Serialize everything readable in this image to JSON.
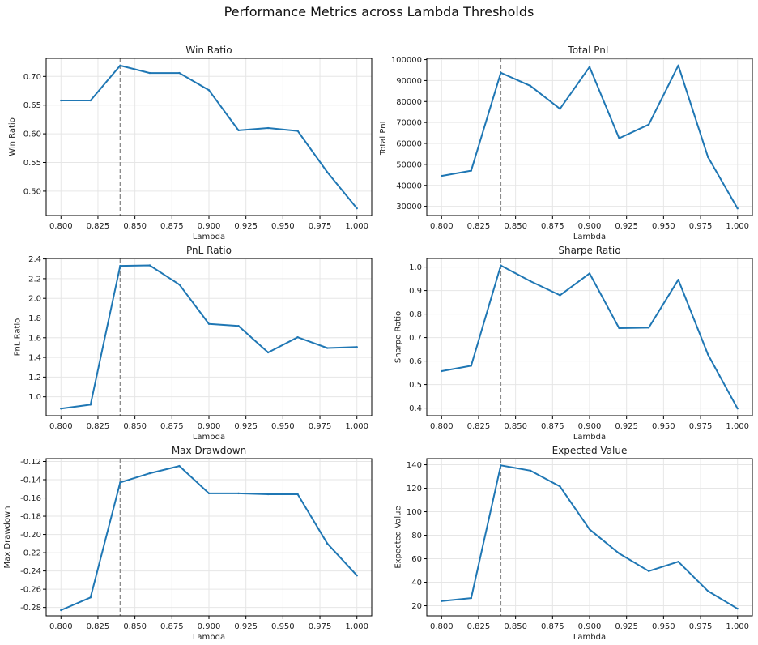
{
  "figure": {
    "title": "Performance Metrics across Lambda Thresholds"
  },
  "chart_data": [
    {
      "type": "line",
      "title": "Win Ratio",
      "xlabel": "Lambda",
      "ylabel": "Win Ratio",
      "x": [
        0.8,
        0.82,
        0.84,
        0.86,
        0.88,
        0.9,
        0.92,
        0.94,
        0.96,
        0.98,
        1.0
      ],
      "series": [
        {
          "values": [
            0.658,
            0.658,
            0.719,
            0.706,
            0.706,
            0.676,
            0.606,
            0.61,
            0.605,
            0.533,
            0.47
          ]
        }
      ],
      "xlim": [
        0.79,
        1.01
      ],
      "ylim": [
        0.4575,
        0.7315
      ],
      "xticks": [
        "0.800",
        "0.825",
        "0.850",
        "0.875",
        "0.900",
        "0.925",
        "0.950",
        "0.975",
        "1.000"
      ],
      "yticks": [
        "0.50",
        "0.55",
        "0.60",
        "0.65",
        "0.70"
      ],
      "vline": 0.84,
      "grid": true,
      "color": "#1f77b4"
    },
    {
      "type": "line",
      "title": "Total PnL",
      "xlabel": "Lambda",
      "ylabel": "Total PnL",
      "x": [
        0.8,
        0.82,
        0.84,
        0.86,
        0.88,
        0.9,
        0.92,
        0.94,
        0.96,
        0.98,
        1.0
      ],
      "series": [
        {
          "values": [
            44500,
            47000,
            93700,
            87500,
            76500,
            96500,
            62500,
            69000,
            97200,
            53500,
            29000
          ]
        }
      ],
      "xlim": [
        0.79,
        1.01
      ],
      "ylim": [
        25600,
        100600
      ],
      "xticks": [
        "0.800",
        "0.825",
        "0.850",
        "0.875",
        "0.900",
        "0.925",
        "0.950",
        "0.975",
        "1.000"
      ],
      "yticks": [
        "30000",
        "40000",
        "50000",
        "60000",
        "70000",
        "80000",
        "90000",
        "100000"
      ],
      "vline": 0.84,
      "grid": true,
      "color": "#1f77b4"
    },
    {
      "type": "line",
      "title": "PnL Ratio",
      "xlabel": "Lambda",
      "ylabel": "PnL Ratio",
      "x": [
        0.8,
        0.82,
        0.84,
        0.86,
        0.88,
        0.9,
        0.92,
        0.94,
        0.96,
        0.98,
        1.0
      ],
      "series": [
        {
          "values": [
            0.88,
            0.92,
            2.33,
            2.335,
            2.14,
            1.74,
            1.72,
            1.45,
            1.605,
            1.495,
            1.505
          ]
        }
      ],
      "xlim": [
        0.79,
        1.01
      ],
      "ylim": [
        0.808,
        2.405
      ],
      "xticks": [
        "0.800",
        "0.825",
        "0.850",
        "0.875",
        "0.900",
        "0.925",
        "0.950",
        "0.975",
        "1.000"
      ],
      "yticks": [
        "1.0",
        "1.2",
        "1.4",
        "1.6",
        "1.8",
        "2.0",
        "2.2",
        "2.4"
      ],
      "vline": 0.84,
      "grid": true,
      "color": "#1f77b4"
    },
    {
      "type": "line",
      "title": "Sharpe Ratio",
      "xlabel": "Lambda",
      "ylabel": "Sharpe Ratio",
      "x": [
        0.8,
        0.82,
        0.84,
        0.86,
        0.88,
        0.9,
        0.92,
        0.94,
        0.96,
        0.98,
        1.0
      ],
      "series": [
        {
          "values": [
            0.557,
            0.58,
            1.007,
            0.94,
            0.88,
            0.973,
            0.74,
            0.742,
            0.946,
            0.628,
            0.398
          ]
        }
      ],
      "xlim": [
        0.79,
        1.01
      ],
      "ylim": [
        0.3675,
        1.0365
      ],
      "xticks": [
        "0.800",
        "0.825",
        "0.850",
        "0.875",
        "0.900",
        "0.925",
        "0.950",
        "0.975",
        "1.000"
      ],
      "yticks": [
        "0.4",
        "0.5",
        "0.6",
        "0.7",
        "0.8",
        "0.9",
        "1.0"
      ],
      "vline": 0.84,
      "grid": true,
      "color": "#1f77b4"
    },
    {
      "type": "line",
      "title": "Max Drawdown",
      "xlabel": "Lambda",
      "ylabel": "Max Drawdown",
      "x": [
        0.8,
        0.82,
        0.84,
        0.86,
        0.88,
        0.9,
        0.92,
        0.94,
        0.96,
        0.98,
        1.0
      ],
      "series": [
        {
          "values": [
            -0.283,
            -0.269,
            -0.143,
            -0.133,
            -0.125,
            -0.155,
            -0.155,
            -0.156,
            -0.156,
            -0.21,
            -0.245
          ]
        }
      ],
      "xlim": [
        0.79,
        1.01
      ],
      "ylim": [
        -0.2892,
        -0.1169
      ],
      "xticks": [
        "0.800",
        "0.825",
        "0.850",
        "0.875",
        "0.900",
        "0.925",
        "0.950",
        "0.975",
        "1.000"
      ],
      "yticks": [
        "-0.28",
        "-0.26",
        "-0.24",
        "-0.22",
        "-0.20",
        "-0.18",
        "-0.16",
        "-0.14",
        "-0.12"
      ],
      "vline": 0.84,
      "grid": true,
      "color": "#1f77b4"
    },
    {
      "type": "line",
      "title": "Expected Value",
      "xlabel": "Lambda",
      "ylabel": "Expected Value",
      "x": [
        0.8,
        0.82,
        0.84,
        0.86,
        0.88,
        0.9,
        0.92,
        0.94,
        0.96,
        0.98,
        1.0
      ],
      "series": [
        {
          "values": [
            24,
            26.5,
            139.5,
            135,
            121.5,
            85,
            64.5,
            49.5,
            57.5,
            32.5,
            17.5
          ]
        }
      ],
      "xlim": [
        0.79,
        1.01
      ],
      "ylim": [
        11.4,
        145.2
      ],
      "xticks": [
        "0.800",
        "0.825",
        "0.850",
        "0.875",
        "0.900",
        "0.925",
        "0.950",
        "0.975",
        "1.000"
      ],
      "yticks": [
        "20",
        "40",
        "60",
        "80",
        "100",
        "120",
        "140"
      ],
      "vline": 0.84,
      "grid": true,
      "color": "#1f77b4"
    }
  ]
}
